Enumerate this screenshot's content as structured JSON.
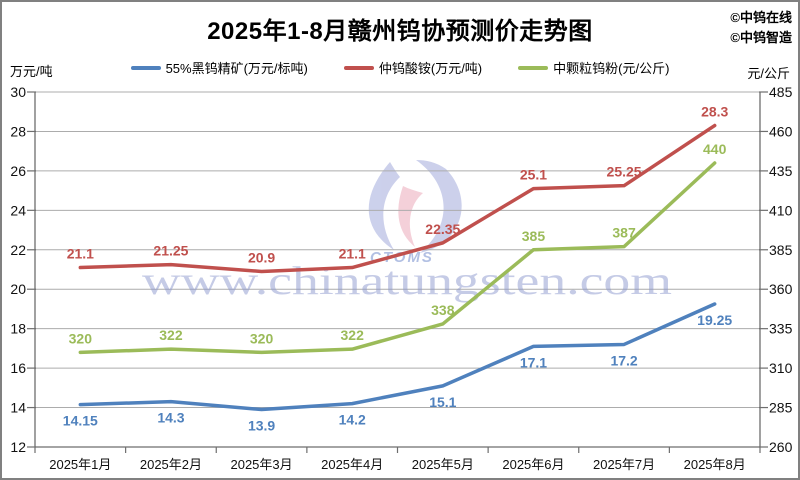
{
  "header": {
    "credits": [
      "©中钨在线",
      "©中钨智造"
    ]
  },
  "watermark": {
    "text": "www.chinatungsten.com",
    "logo_text": "CTOMS"
  },
  "chart_data": {
    "type": "line",
    "title": "2025年1-8月赣州钨协预测价走势图",
    "categories": [
      "2025年1月",
      "2025年2月",
      "2025年3月",
      "2025年4月",
      "2025年5月",
      "2025年6月",
      "2025年7月",
      "2025年8月"
    ],
    "series": [
      {
        "name": "55%黑钨精矿(万元/标吨)",
        "axis": "left",
        "color": "#4F81BD",
        "label_position": "below",
        "values": [
          14.15,
          14.3,
          13.9,
          14.2,
          15.1,
          17.1,
          17.2,
          19.25
        ]
      },
      {
        "name": "仲钨酸铵(万元/吨)",
        "axis": "left",
        "color": "#C0504D",
        "label_position": "above",
        "values": [
          21.1,
          21.25,
          20.9,
          21.1,
          22.35,
          25.1,
          25.25,
          28.3
        ]
      },
      {
        "name": "中颗粒钨粉(元/公斤)",
        "axis": "right",
        "color": "#9BBB59",
        "label_position": "above",
        "values": [
          320,
          322,
          320,
          322,
          338,
          385,
          387,
          440
        ]
      }
    ],
    "left_axis": {
      "unit": "万元/吨",
      "min": 12,
      "max": 30,
      "step": 2,
      "ticks": [
        30,
        28,
        26,
        24,
        22,
        20,
        18,
        16,
        14,
        12
      ]
    },
    "right_axis": {
      "unit": "元/公斤",
      "min": 260,
      "max": 485,
      "step": 25,
      "ticks": [
        485,
        460,
        435,
        410,
        385,
        360,
        335,
        310,
        285,
        260
      ]
    },
    "grid": true,
    "legend_position": "top"
  }
}
